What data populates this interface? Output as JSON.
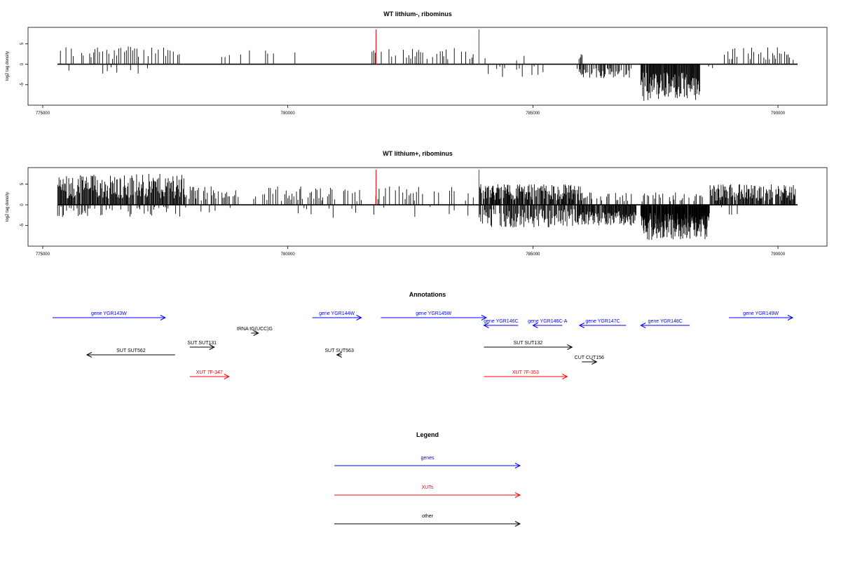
{
  "colors": {
    "genes": "#0000ff",
    "xuts": "#ff0000",
    "other": "#000000",
    "marker": "#ff0000",
    "bars": "#000000"
  },
  "chart_data": [
    {
      "type": "bar",
      "title": "WT lithium-, ribominus",
      "ylabel": "log2 tag density",
      "xlim": [
        774700,
        791000
      ],
      "ylim": [
        -10,
        9
      ],
      "xticks": [
        775000,
        780000,
        785000,
        790000
      ],
      "xtick_labels": [
        "775000",
        "780000",
        "785000",
        "790000"
      ],
      "yticks": [
        5,
        0,
        -5
      ],
      "ytick_labels": [
        "5",
        "0",
        "-5"
      ],
      "markers_x": [
        781800,
        783900
      ],
      "baseline_range": [
        775300,
        790400
      ],
      "segments": [
        {
          "x0": 775300,
          "x1": 777800,
          "sign": 1,
          "amp": [
            1.2,
            4.5
          ],
          "step": 40,
          "density": 0.65
        },
        {
          "x0": 775400,
          "x1": 777800,
          "sign": -1,
          "amp": [
            0.5,
            2.5
          ],
          "step": 90,
          "density": 0.25
        },
        {
          "x0": 778300,
          "x1": 779200,
          "sign": 1,
          "amp": [
            1.5,
            3.5
          ],
          "step": 80,
          "density": 0.5
        },
        {
          "x0": 779500,
          "x1": 779700,
          "sign": 1,
          "amp": [
            2.0,
            3.5
          ],
          "step": 40,
          "density": 0.6
        },
        {
          "x0": 780100,
          "x1": 781300,
          "sign": 1,
          "amp": [
            1.5,
            3.0
          ],
          "step": 300,
          "density": 0.5
        },
        {
          "x0": 781700,
          "x1": 783800,
          "sign": 1,
          "amp": [
            1.2,
            4.0
          ],
          "step": 40,
          "density": 0.65
        },
        {
          "x0": 784000,
          "x1": 785300,
          "sign": -1,
          "amp": [
            0.5,
            3.5
          ],
          "step": 60,
          "density": 0.45
        },
        {
          "x0": 784000,
          "x1": 785000,
          "sign": 1,
          "amp": [
            0.8,
            3.2
          ],
          "step": 150,
          "density": 0.3
        },
        {
          "x0": 785900,
          "x1": 787000,
          "sign": -1,
          "amp": [
            1.0,
            3.5
          ],
          "step": 18,
          "density": 0.8
        },
        {
          "x0": 785900,
          "x1": 786000,
          "sign": 1,
          "amp": [
            1.0,
            3.0
          ],
          "step": 20,
          "density": 0.7
        },
        {
          "x0": 787200,
          "x1": 788400,
          "sign": -1,
          "amp": [
            2.0,
            9.0
          ],
          "step": 12,
          "density": 0.95
        },
        {
          "x0": 788500,
          "x1": 788700,
          "sign": -1,
          "amp": [
            0.5,
            3.0
          ],
          "step": 80,
          "density": 0.4
        },
        {
          "x0": 788900,
          "x1": 790300,
          "sign": 1,
          "amp": [
            1.0,
            4.2
          ],
          "step": 35,
          "density": 0.65
        }
      ]
    },
    {
      "type": "bar",
      "title": "WT lithium+, ribominus",
      "ylabel": "log2 tag density",
      "xlim": [
        774700,
        791000
      ],
      "ylim": [
        -10,
        9
      ],
      "xticks": [
        775000,
        780000,
        785000,
        790000
      ],
      "xtick_labels": [
        "775000",
        "780000",
        "785000",
        "790000"
      ],
      "yticks": [
        5,
        0,
        -5
      ],
      "ytick_labels": [
        "5",
        "0",
        "-5"
      ],
      "markers_x": [
        781800,
        783900
      ],
      "baseline_range": [
        775300,
        790400
      ],
      "segments": [
        {
          "x0": 775300,
          "x1": 777900,
          "sign": 1,
          "amp": [
            1.5,
            7.5
          ],
          "step": 14,
          "density": 0.95
        },
        {
          "x0": 775300,
          "x1": 777900,
          "sign": -1,
          "amp": [
            0.5,
            3.0
          ],
          "step": 30,
          "density": 0.55
        },
        {
          "x0": 777900,
          "x1": 779000,
          "sign": 1,
          "amp": [
            1.0,
            4.5
          ],
          "step": 25,
          "density": 0.7
        },
        {
          "x0": 777900,
          "x1": 779000,
          "sign": -1,
          "amp": [
            0.5,
            2.5
          ],
          "step": 60,
          "density": 0.4
        },
        {
          "x0": 779300,
          "x1": 781500,
          "sign": 1,
          "amp": [
            0.8,
            4.5
          ],
          "step": 30,
          "density": 0.6
        },
        {
          "x0": 780200,
          "x1": 781500,
          "sign": -1,
          "amp": [
            0.5,
            3.5
          ],
          "step": 90,
          "density": 0.4
        },
        {
          "x0": 781700,
          "x1": 783800,
          "sign": 1,
          "amp": [
            1.0,
            4.5
          ],
          "step": 40,
          "density": 0.55
        },
        {
          "x0": 781700,
          "x1": 783800,
          "sign": -1,
          "amp": [
            0.5,
            3.0
          ],
          "step": 120,
          "density": 0.3
        },
        {
          "x0": 783900,
          "x1": 786000,
          "sign": 1,
          "amp": [
            1.0,
            5.0
          ],
          "step": 12,
          "density": 0.9
        },
        {
          "x0": 783900,
          "x1": 785900,
          "sign": -1,
          "amp": [
            1.0,
            5.5
          ],
          "step": 16,
          "density": 0.85
        },
        {
          "x0": 785900,
          "x1": 787100,
          "sign": -1,
          "amp": [
            1.5,
            5.0
          ],
          "step": 12,
          "density": 0.95
        },
        {
          "x0": 786000,
          "x1": 787000,
          "sign": 1,
          "amp": [
            0.8,
            3.0
          ],
          "step": 25,
          "density": 0.6
        },
        {
          "x0": 787200,
          "x1": 788600,
          "sign": -1,
          "amp": [
            2.0,
            8.5
          ],
          "step": 8,
          "density": 0.97
        },
        {
          "x0": 787200,
          "x1": 788500,
          "sign": 1,
          "amp": [
            0.8,
            3.0
          ],
          "step": 25,
          "density": 0.6
        },
        {
          "x0": 788600,
          "x1": 790350,
          "sign": 1,
          "amp": [
            1.0,
            5.0
          ],
          "step": 14,
          "density": 0.9
        },
        {
          "x0": 788600,
          "x1": 789200,
          "sign": -1,
          "amp": [
            0.5,
            2.5
          ],
          "step": 50,
          "density": 0.4
        }
      ]
    }
  ],
  "annotations": {
    "title": "Annotations",
    "xlim": [
      774700,
      791000
    ],
    "items": [
      {
        "label": "gene YGR143W",
        "kind": "genes",
        "start": 775200,
        "end": 777500,
        "strand": "+",
        "row": 0
      },
      {
        "label": "gene YGR144W",
        "kind": "genes",
        "start": 780500,
        "end": 781500,
        "strand": "+",
        "row": 0
      },
      {
        "label": "gene YGR145W",
        "kind": "genes",
        "start": 781900,
        "end": 784050,
        "strand": "+",
        "row": 0
      },
      {
        "label": "gene YGR146C",
        "kind": "genes",
        "start": 784000,
        "end": 784700,
        "strand": "-",
        "row": 1
      },
      {
        "label": "gene YGR146C-A",
        "kind": "genes",
        "start": 785000,
        "end": 785600,
        "strand": "-",
        "row": 1
      },
      {
        "label": "gene YGR147C",
        "kind": "genes",
        "start": 785950,
        "end": 786900,
        "strand": "-",
        "row": 1
      },
      {
        "label": "gene YGR148C",
        "kind": "genes",
        "start": 787200,
        "end": 788200,
        "strand": "-",
        "row": 1
      },
      {
        "label": "gene YGR149W",
        "kind": "genes",
        "start": 789000,
        "end": 790300,
        "strand": "+",
        "row": 0
      },
      {
        "label": "tRNA tG(UCC)G",
        "kind": "other",
        "start": 779250,
        "end": 779400,
        "strand": "+",
        "row": 2
      },
      {
        "label": "SUT SUT131",
        "kind": "other",
        "start": 778000,
        "end": 778500,
        "strand": "+",
        "row": 3
      },
      {
        "label": "SUT SUT562",
        "kind": "other",
        "start": 775900,
        "end": 777700,
        "strand": "-",
        "row": 4
      },
      {
        "label": "SUT SUT563",
        "kind": "other",
        "start": 781000,
        "end": 781100,
        "strand": "-",
        "row": 4
      },
      {
        "label": "SUT SUT132",
        "kind": "other",
        "start": 784000,
        "end": 785800,
        "strand": "+",
        "row": 3
      },
      {
        "label": "CUT CUT156",
        "kind": "other",
        "start": 786000,
        "end": 786300,
        "strand": "+",
        "row": 5
      },
      {
        "label": "XUT 7F-347",
        "kind": "xuts",
        "start": 778000,
        "end": 778800,
        "strand": "+",
        "row": 6
      },
      {
        "label": "XUT 7F-353",
        "kind": "xuts",
        "start": 784000,
        "end": 785700,
        "strand": "+",
        "row": 6
      }
    ]
  },
  "legend": {
    "title": "Legend",
    "entries": [
      {
        "label": "genes",
        "kind": "genes"
      },
      {
        "label": "XUTs",
        "kind": "xuts"
      },
      {
        "label": "other",
        "kind": "other"
      }
    ]
  }
}
